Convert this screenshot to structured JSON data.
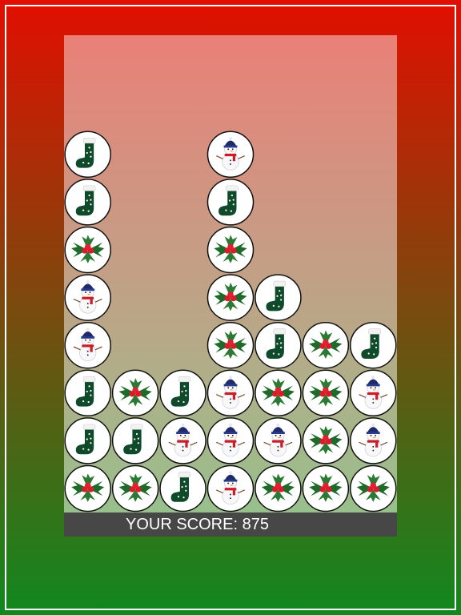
{
  "score": {
    "label": "YOUR SCORE:",
    "value": 875
  }
}
